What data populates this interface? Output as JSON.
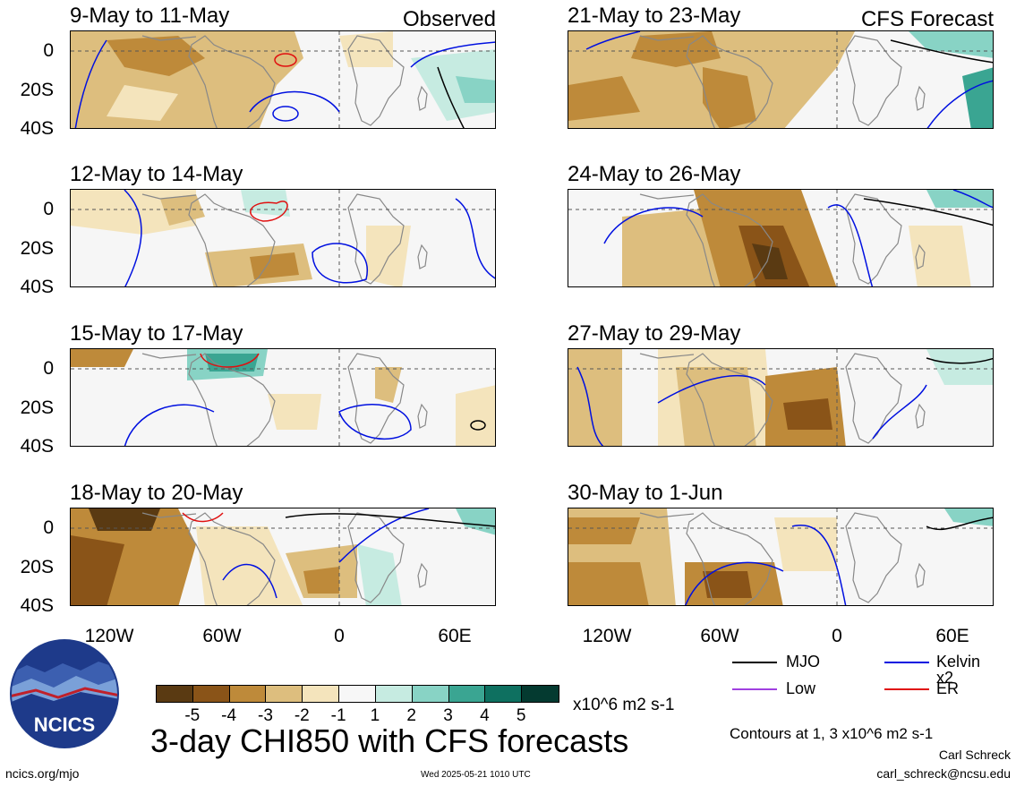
{
  "panels": [
    {
      "id": "p1",
      "title": "9-May to 11-May",
      "label": "Observed"
    },
    {
      "id": "p2",
      "title": "21-May to 23-May",
      "label": "CFS Forecast"
    },
    {
      "id": "p3",
      "title": "12-May to 14-May",
      "label": ""
    },
    {
      "id": "p4",
      "title": "24-May to 26-May",
      "label": ""
    },
    {
      "id": "p5",
      "title": "15-May to 17-May",
      "label": ""
    },
    {
      "id": "p6",
      "title": "27-May to 29-May",
      "label": ""
    },
    {
      "id": "p7",
      "title": "18-May to 20-May",
      "label": ""
    },
    {
      "id": "p8",
      "title": "30-May to 1-Jun",
      "label": ""
    }
  ],
  "lat_labels": [
    "0",
    "20S",
    "40S"
  ],
  "lon_labels": [
    "120W",
    "60W",
    "0",
    "60E"
  ],
  "colorbar": {
    "colors": [
      "#5a3a12",
      "#8a5418",
      "#be8a3a",
      "#ddbe7e",
      "#f4e4bc",
      "#f7f7f7",
      "#c6ebe1",
      "#88d3c5",
      "#3aa592",
      "#0e7060",
      "#043a30"
    ],
    "ticks": [
      "-5",
      "-4",
      "-3",
      "-2",
      "-1",
      "1",
      "2",
      "3",
      "4",
      "5"
    ],
    "units": "x10^6 m2 s-1"
  },
  "legend": {
    "items": [
      {
        "label": "MJO",
        "color": "#000000"
      },
      {
        "label": "Kelvin x2",
        "color": "#0010e0"
      },
      {
        "label": "Low",
        "color": "#a040e0"
      },
      {
        "label": "ER",
        "color": "#e01010"
      }
    ],
    "note": "Contours at 1, 3 x10^6 m2 s-1"
  },
  "main_title": "3-day CHI850 with CFS forecasts",
  "logo_text": "NCICS",
  "footer": {
    "left": "ncics.org/mjo",
    "center": "Wed 2025-05-21 1010 UTC",
    "author": "Carl Schreck",
    "email": "carl_schreck@ncsu.edu"
  }
}
